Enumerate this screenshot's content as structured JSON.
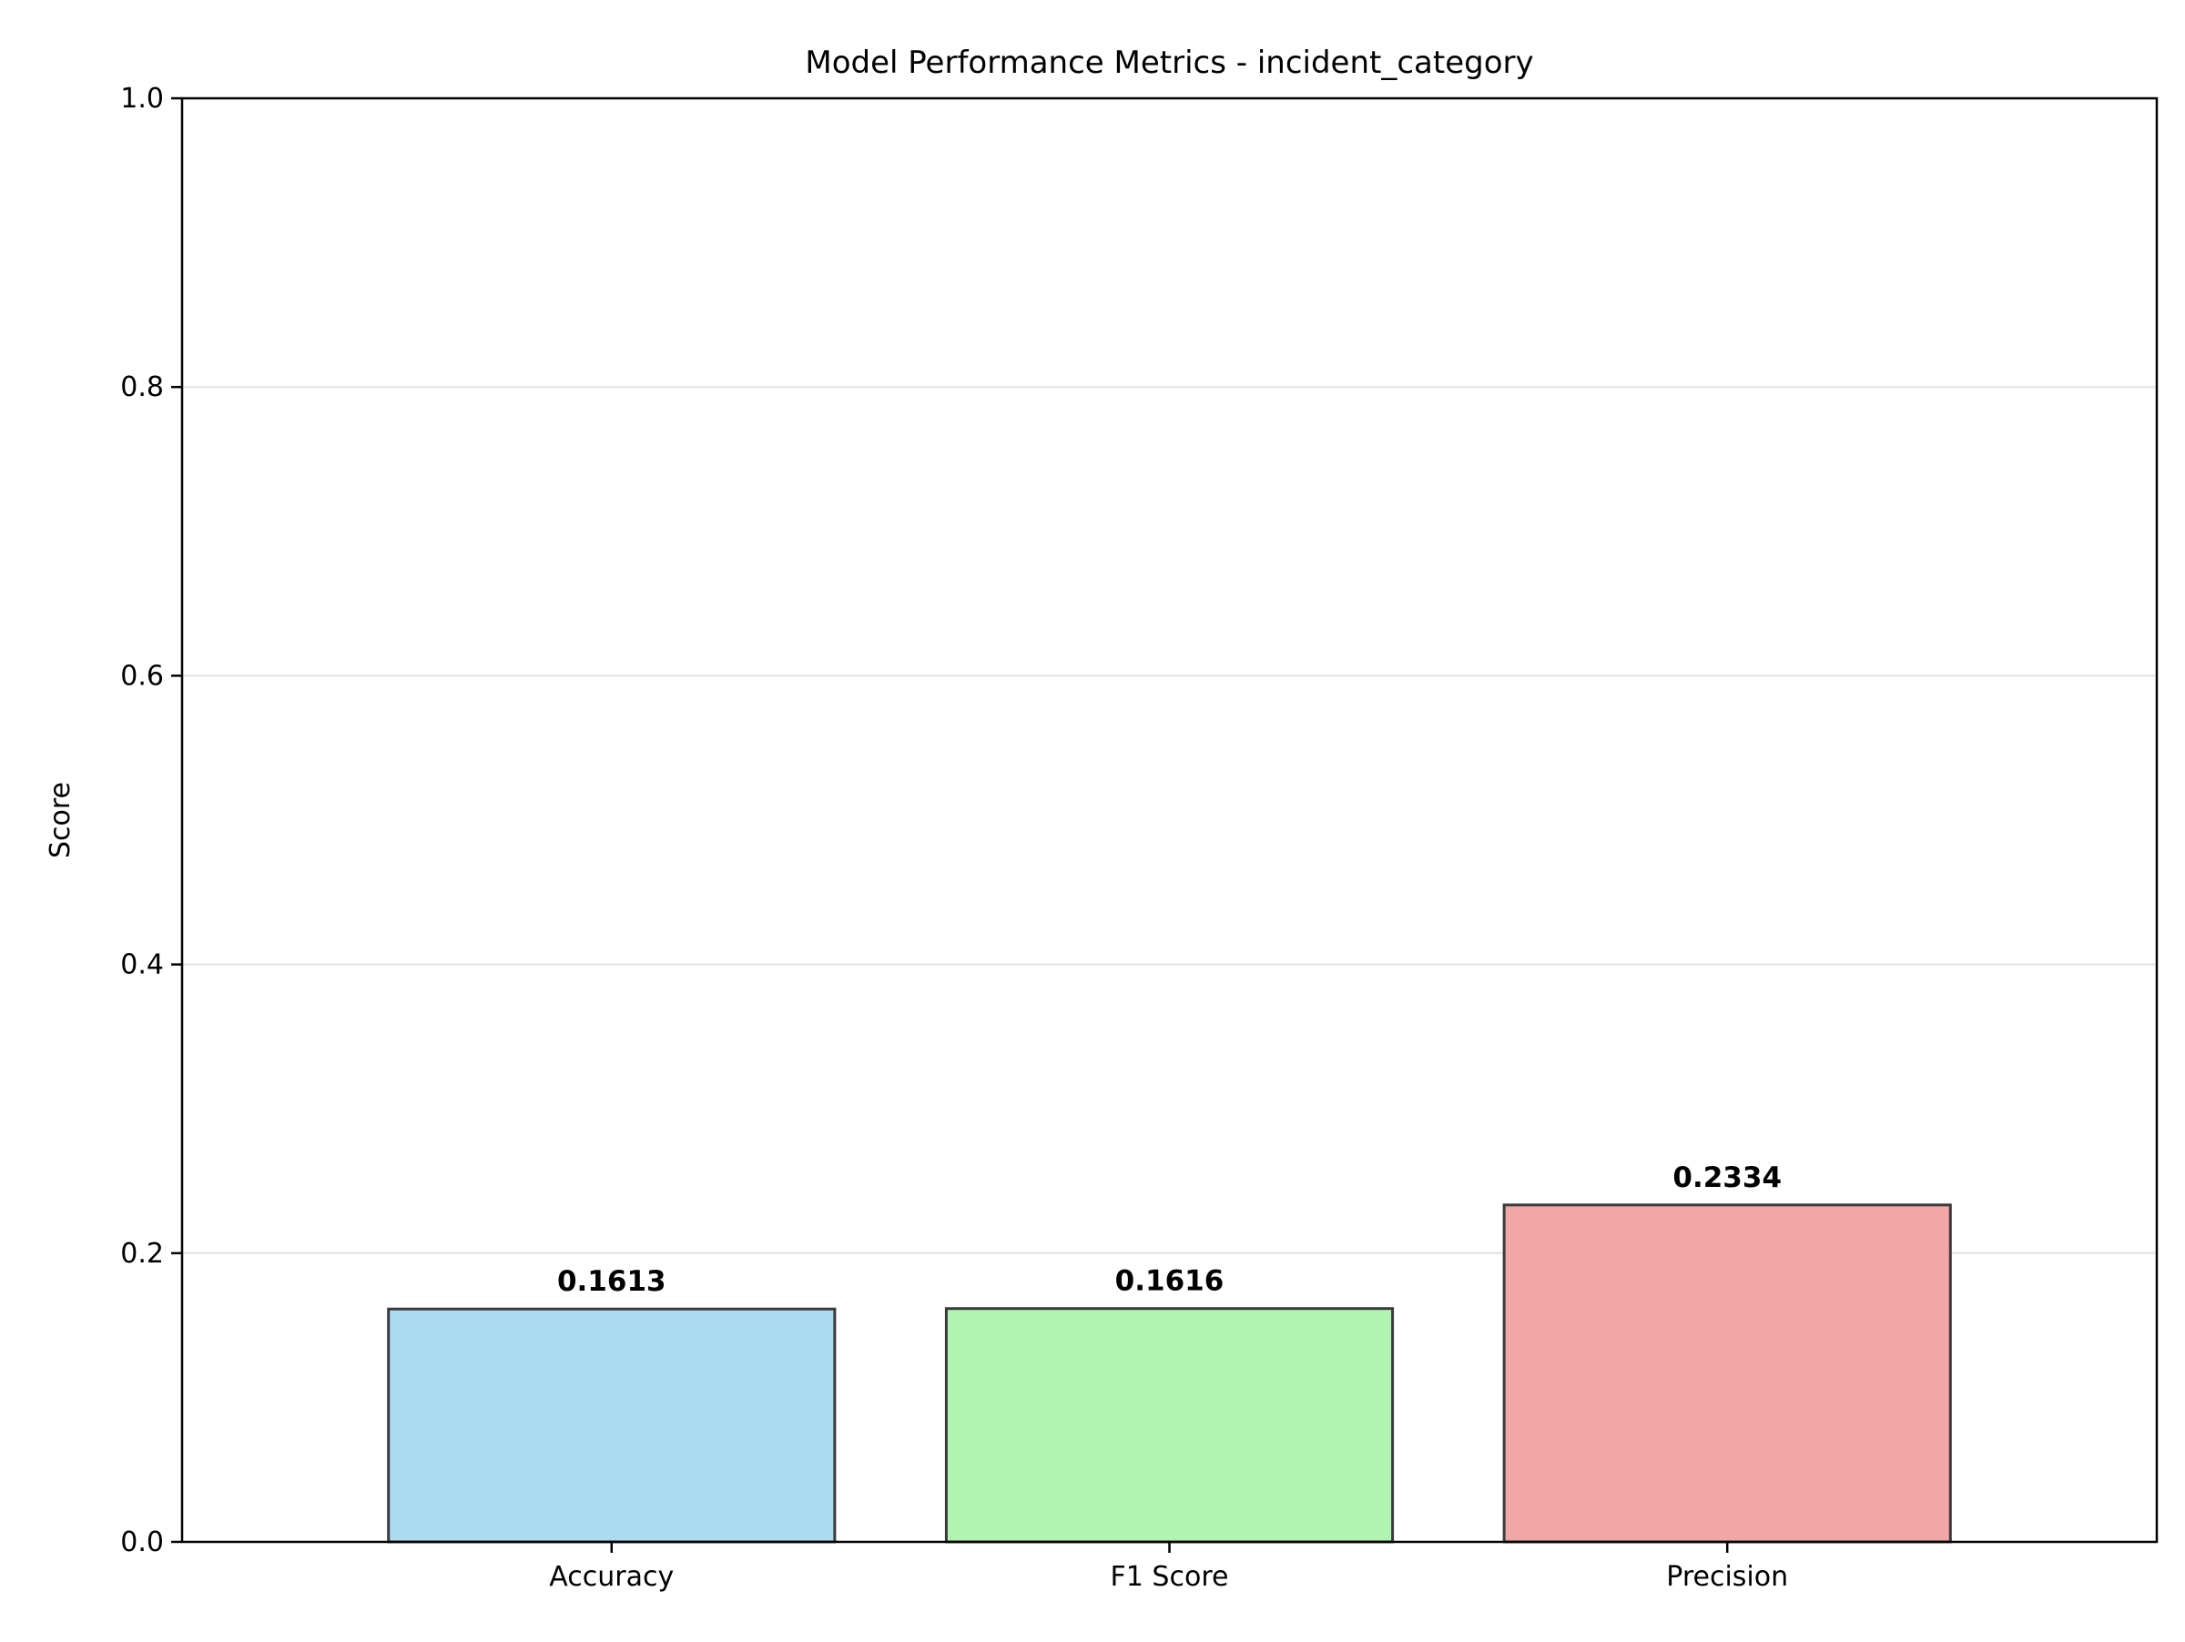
{
  "chart_data": {
    "type": "bar",
    "title": "Model Performance Metrics - incident_category",
    "xlabel": "",
    "ylabel": "Score",
    "categories": [
      "Accuracy",
      "F1 Score",
      "Precision"
    ],
    "values": [
      0.1613,
      0.1616,
      0.2334
    ],
    "value_labels": [
      "0.1613",
      "0.1616",
      "0.2334"
    ],
    "ylim": [
      0,
      1.0
    ],
    "yticks": [
      0.0,
      0.2,
      0.4,
      0.6,
      0.8,
      1.0
    ],
    "ytick_labels": [
      "0.0",
      "0.2",
      "0.4",
      "0.6",
      "0.8",
      "1.0"
    ],
    "grid": "horizontal",
    "legend": "none",
    "colors": {
      "bars": [
        "#a8dcee",
        "#b1f4b1",
        "#f2a6a6"
      ],
      "bar_edge": "#3b3b3b",
      "grid": "#e6e6e6",
      "axes": "#000000"
    }
  }
}
